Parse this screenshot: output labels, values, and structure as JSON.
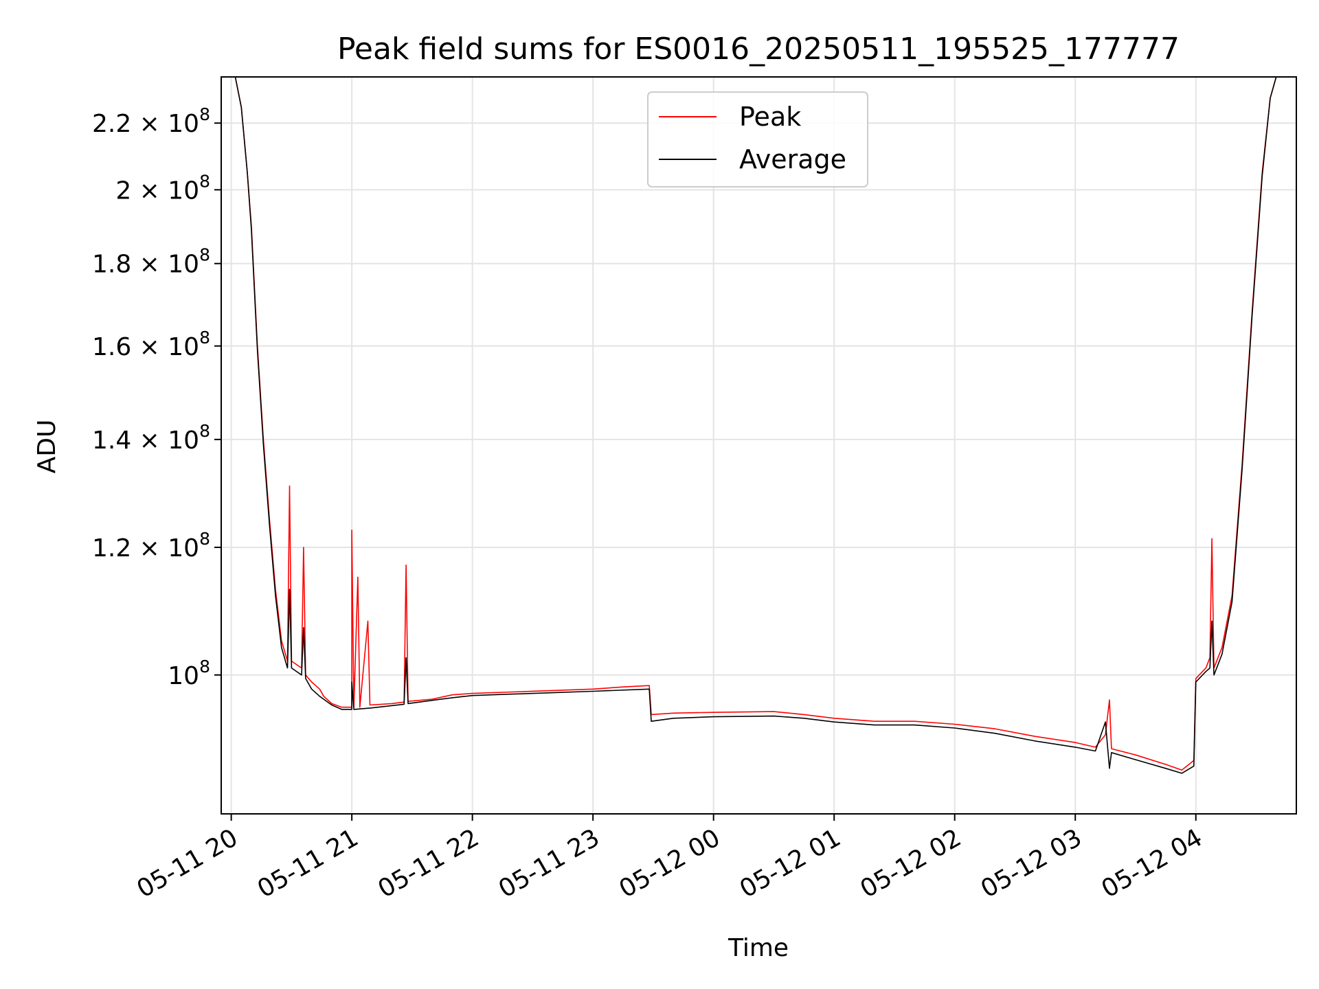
{
  "chart_data": {
    "type": "line",
    "title": "Peak field sums for ES0016_20250511_195525_177777",
    "xlabel": "Time",
    "ylabel": "ADU",
    "y_scale": "log",
    "x_start": "2025-05-11 19:55",
    "x_end": "2025-05-12 04:50",
    "ylim": [
      82000000,
      235000000
    ],
    "x_ticks": [
      {
        "time": "2025-05-11 20:00",
        "label": "05-11 20"
      },
      {
        "time": "2025-05-11 21:00",
        "label": "05-11 21"
      },
      {
        "time": "2025-05-11 22:00",
        "label": "05-11 22"
      },
      {
        "time": "2025-05-11 23:00",
        "label": "05-11 23"
      },
      {
        "time": "2025-05-12 00:00",
        "label": "05-12 00"
      },
      {
        "time": "2025-05-12 01:00",
        "label": "05-12 01"
      },
      {
        "time": "2025-05-12 02:00",
        "label": "05-12 02"
      },
      {
        "time": "2025-05-12 03:00",
        "label": "05-12 03"
      },
      {
        "time": "2025-05-12 04:00",
        "label": "05-12 04"
      }
    ],
    "y_ticks": [
      {
        "value": 100000000,
        "base": "10",
        "exp": "8"
      },
      {
        "value": 120000000,
        "base": "1.2 × 10",
        "exp": "8"
      },
      {
        "value": 140000000,
        "base": "1.4 × 10",
        "exp": "8"
      },
      {
        "value": 160000000,
        "base": "1.6 × 10",
        "exp": "8"
      },
      {
        "value": 180000000,
        "base": "1.8 × 10",
        "exp": "8"
      },
      {
        "value": 200000000,
        "base": "2 × 10",
        "exp": "8"
      },
      {
        "value": 220000000,
        "base": "2.2 × 10",
        "exp": "8"
      }
    ],
    "grid": true,
    "legend_position": "top-center",
    "series": [
      {
        "name": "Peak",
        "color": "#ff0000",
        "points": [
          [
            "2025-05-11 20:02",
            235000000
          ],
          [
            "2025-05-11 20:05",
            225000000
          ],
          [
            "2025-05-11 20:08",
            205000000
          ],
          [
            "2025-05-11 20:10",
            190000000
          ],
          [
            "2025-05-11 20:13",
            160000000
          ],
          [
            "2025-05-11 20:16",
            140000000
          ],
          [
            "2025-05-11 20:19",
            125000000
          ],
          [
            "2025-05-11 20:22",
            113000000
          ],
          [
            "2025-05-11 20:25",
            105000000
          ],
          [
            "2025-05-11 20:28",
            102000000
          ],
          [
            "2025-05-11 20:29",
            131000000
          ],
          [
            "2025-05-11 20:30",
            102000000
          ],
          [
            "2025-05-11 20:35",
            101000000
          ],
          [
            "2025-05-11 20:36",
            120000000
          ],
          [
            "2025-05-11 20:37",
            100000000
          ],
          [
            "2025-05-11 20:40",
            99000000
          ],
          [
            "2025-05-11 20:44",
            98000000
          ],
          [
            "2025-05-11 20:46",
            97000000
          ],
          [
            "2025-05-11 20:50",
            96000000
          ],
          [
            "2025-05-11 20:55",
            95500000
          ],
          [
            "2025-05-11 21:00",
            95500000
          ],
          [
            "2025-05-11 21:00",
            123000000
          ],
          [
            "2025-05-11 21:01",
            95500000
          ],
          [
            "2025-05-11 21:03",
            115000000
          ],
          [
            "2025-05-11 21:04",
            95500000
          ],
          [
            "2025-05-11 21:08",
            108000000
          ],
          [
            "2025-05-11 21:09",
            95800000
          ],
          [
            "2025-05-11 21:20",
            96000000
          ],
          [
            "2025-05-11 21:26",
            96200000
          ],
          [
            "2025-05-11 21:27",
            117000000
          ],
          [
            "2025-05-11 21:28",
            96300000
          ],
          [
            "2025-05-11 21:40",
            96600000
          ],
          [
            "2025-05-11 21:50",
            97200000
          ],
          [
            "2025-05-11 22:00",
            97400000
          ],
          [
            "2025-05-11 22:20",
            97600000
          ],
          [
            "2025-05-11 22:40",
            97800000
          ],
          [
            "2025-05-11 23:00",
            98000000
          ],
          [
            "2025-05-11 23:15",
            98300000
          ],
          [
            "2025-05-11 23:28",
            98500000
          ],
          [
            "2025-05-11 23:29",
            94500000
          ],
          [
            "2025-05-11 23:40",
            94700000
          ],
          [
            "2025-05-12 00:00",
            94800000
          ],
          [
            "2025-05-12 00:30",
            94900000
          ],
          [
            "2025-05-12 00:45",
            94500000
          ],
          [
            "2025-05-12 01:00",
            94000000
          ],
          [
            "2025-05-12 01:20",
            93600000
          ],
          [
            "2025-05-12 01:40",
            93600000
          ],
          [
            "2025-05-12 02:00",
            93200000
          ],
          [
            "2025-05-12 02:20",
            92600000
          ],
          [
            "2025-05-12 02:40",
            91600000
          ],
          [
            "2025-05-12 03:00",
            90800000
          ],
          [
            "2025-05-12 03:10",
            90200000
          ],
          [
            "2025-05-12 03:15",
            91800000
          ],
          [
            "2025-05-12 03:17",
            96500000
          ],
          [
            "2025-05-12 03:18",
            90000000
          ],
          [
            "2025-05-12 03:30",
            89200000
          ],
          [
            "2025-05-12 03:45",
            88000000
          ],
          [
            "2025-05-12 03:53",
            87300000
          ],
          [
            "2025-05-12 03:59",
            88500000
          ],
          [
            "2025-05-12 04:00",
            99500000
          ],
          [
            "2025-05-12 04:05",
            101000000
          ],
          [
            "2025-05-12 04:07",
            102500000
          ],
          [
            "2025-05-12 04:08",
            121500000
          ],
          [
            "2025-05-12 04:09",
            101000000
          ],
          [
            "2025-05-12 04:13",
            104000000
          ],
          [
            "2025-05-12 04:18",
            112000000
          ],
          [
            "2025-05-12 04:23",
            135000000
          ],
          [
            "2025-05-12 04:28",
            168000000
          ],
          [
            "2025-05-12 04:33",
            205000000
          ],
          [
            "2025-05-12 04:37",
            228000000
          ],
          [
            "2025-05-12 04:40",
            235000000
          ],
          [
            "2025-05-12 04:50",
            235000000
          ]
        ]
      },
      {
        "name": "Average",
        "color": "#000000",
        "points": [
          [
            "2025-05-11 20:02",
            235000000
          ],
          [
            "2025-05-11 20:05",
            225000000
          ],
          [
            "2025-05-11 20:08",
            205000000
          ],
          [
            "2025-05-11 20:10",
            189000000
          ],
          [
            "2025-05-11 20:13",
            159000000
          ],
          [
            "2025-05-11 20:16",
            139000000
          ],
          [
            "2025-05-11 20:19",
            124000000
          ],
          [
            "2025-05-11 20:22",
            112000000
          ],
          [
            "2025-05-11 20:25",
            104000000
          ],
          [
            "2025-05-11 20:28",
            101000000
          ],
          [
            "2025-05-11 20:29",
            113000000
          ],
          [
            "2025-05-11 20:30",
            101000000
          ],
          [
            "2025-05-11 20:35",
            100000000
          ],
          [
            "2025-05-11 20:36",
            107000000
          ],
          [
            "2025-05-11 20:37",
            99500000
          ],
          [
            "2025-05-11 20:40",
            98000000
          ],
          [
            "2025-05-11 20:44",
            97000000
          ],
          [
            "2025-05-11 20:50",
            95800000
          ],
          [
            "2025-05-11 20:55",
            95200000
          ],
          [
            "2025-05-11 21:00",
            95200000
          ],
          [
            "2025-05-11 21:00",
            99000000
          ],
          [
            "2025-05-11 21:01",
            95200000
          ],
          [
            "2025-05-11 21:10",
            95400000
          ],
          [
            "2025-05-11 21:26",
            95900000
          ],
          [
            "2025-05-11 21:27",
            102500000
          ],
          [
            "2025-05-11 21:28",
            96000000
          ],
          [
            "2025-05-11 21:50",
            96800000
          ],
          [
            "2025-05-11 22:00",
            97100000
          ],
          [
            "2025-05-11 22:20",
            97300000
          ],
          [
            "2025-05-11 22:40",
            97500000
          ],
          [
            "2025-05-11 23:00",
            97700000
          ],
          [
            "2025-05-11 23:28",
            98000000
          ],
          [
            "2025-05-11 23:29",
            93600000
          ],
          [
            "2025-05-11 23:40",
            94000000
          ],
          [
            "2025-05-12 00:00",
            94200000
          ],
          [
            "2025-05-12 00:30",
            94300000
          ],
          [
            "2025-05-12 00:45",
            94000000
          ],
          [
            "2025-05-12 01:00",
            93500000
          ],
          [
            "2025-05-12 01:20",
            93100000
          ],
          [
            "2025-05-12 01:40",
            93100000
          ],
          [
            "2025-05-12 02:00",
            92700000
          ],
          [
            "2025-05-12 02:20",
            92000000
          ],
          [
            "2025-05-12 02:40",
            91000000
          ],
          [
            "2025-05-12 03:00",
            90200000
          ],
          [
            "2025-05-12 03:10",
            89700000
          ],
          [
            "2025-05-12 03:15",
            93500000
          ],
          [
            "2025-05-12 03:17",
            87500000
          ],
          [
            "2025-05-12 03:18",
            89500000
          ],
          [
            "2025-05-12 03:30",
            88600000
          ],
          [
            "2025-05-12 03:45",
            87500000
          ],
          [
            "2025-05-12 03:53",
            86900000
          ],
          [
            "2025-05-12 03:59",
            87800000
          ],
          [
            "2025-05-12 04:00",
            99000000
          ],
          [
            "2025-05-12 04:05",
            100500000
          ],
          [
            "2025-05-12 04:07",
            101000000
          ],
          [
            "2025-05-12 04:08",
            108000000
          ],
          [
            "2025-05-12 04:09",
            100000000
          ],
          [
            "2025-05-12 04:13",
            103000000
          ],
          [
            "2025-05-12 04:18",
            111000000
          ],
          [
            "2025-05-12 04:23",
            134000000
          ],
          [
            "2025-05-12 04:28",
            167000000
          ],
          [
            "2025-05-12 04:33",
            204000000
          ],
          [
            "2025-05-12 04:37",
            228000000
          ],
          [
            "2025-05-12 04:40",
            235000000
          ],
          [
            "2025-05-12 04:50",
            235000000
          ]
        ]
      }
    ]
  }
}
